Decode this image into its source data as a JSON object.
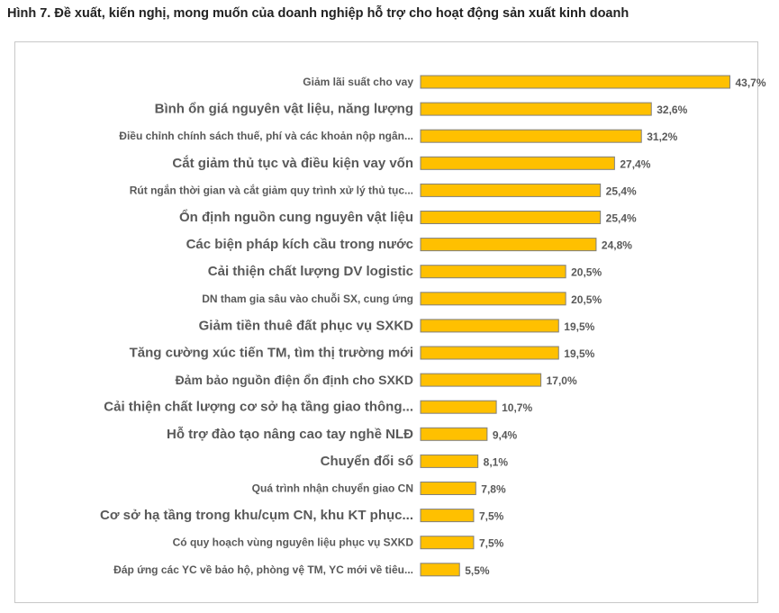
{
  "title": "Hình 7. Đề xuất, kiến nghị, mong muốn của doanh nghiệp hỗ trợ cho hoạt động sản xuất kinh doanh",
  "chart_data": {
    "type": "bar",
    "orientation": "horizontal",
    "title": "Hình 7. Đề xuất, kiến nghị, mong muốn của doanh nghiệp hỗ trợ cho hoạt động sản xuất kinh doanh",
    "xlabel": "",
    "ylabel": "",
    "xlim": [
      0,
      45
    ],
    "grid": false,
    "legend": "none",
    "bar_color": "#FFC000",
    "bar_edge_color": "#7f7f7f",
    "label_color": "#595959",
    "categories": [
      "Giảm lãi suất cho vay",
      "Bình ổn giá nguyên vật liệu, năng lượng",
      "Điều chỉnh chính sách thuế, phí và các khoản nộp ngân...",
      "Cắt giảm thủ tục và điều kiện vay vốn",
      "Rút ngắn thời gian và cắt giảm quy trình xử lý thủ tục...",
      "Ổn định nguồn cung nguyên vật liệu",
      "Các biện pháp kích cầu trong nước",
      "Cải thiện chất lượng DV logistic",
      "DN tham gia sâu vào chuỗi SX, cung ứng",
      "Giảm tiền thuê đất phục vụ SXKD",
      "Tăng cường xúc tiến TM, tìm thị trường mới",
      "Đảm bảo nguồn điện ổn định cho SXKD",
      "Cải thiện chất lượng cơ sở hạ tầng giao thông...",
      "Hỗ trợ đào tạo nâng cao tay nghề NLĐ",
      "Chuyển đổi số",
      "Quá trình nhận chuyển giao CN",
      "Cơ sở hạ tầng trong khu/cụm CN, khu KT phục...",
      "Có quy hoạch vùng nguyên liệu phục vụ SXKD",
      "Đáp ứng các YC về bảo hộ, phòng vệ TM, YC mới về tiêu..."
    ],
    "values": [
      43.7,
      32.6,
      31.2,
      27.4,
      25.4,
      25.4,
      24.8,
      20.5,
      20.5,
      19.5,
      19.5,
      17.0,
      10.7,
      9.4,
      8.1,
      7.8,
      7.5,
      7.5,
      5.5
    ],
    "value_labels": [
      "43,7%",
      "32,6%",
      "31,2%",
      "27,4%",
      "25,4%",
      "25,4%",
      "24,8%",
      "20,5%",
      "20,5%",
      "19,5%",
      "19,5%",
      "17,0%",
      "10,7%",
      "9,4%",
      "8,1%",
      "7,8%",
      "7,5%",
      "7,5%",
      "5,5%"
    ]
  }
}
